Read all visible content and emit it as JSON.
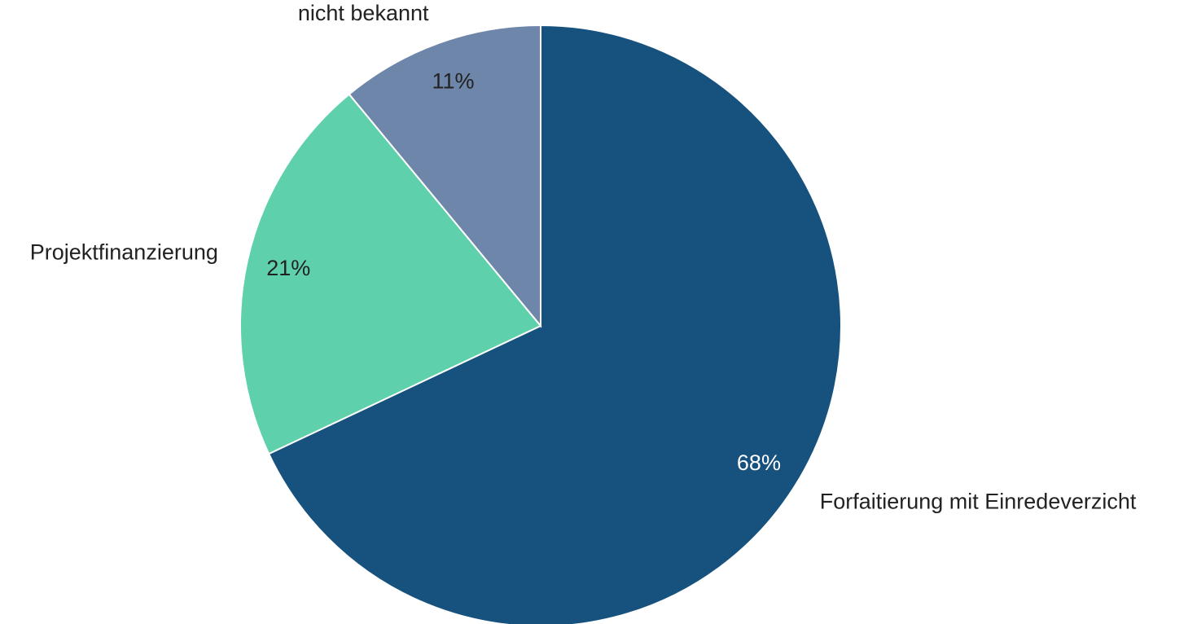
{
  "chart_data": {
    "type": "pie",
    "categories": [
      "Forfaitierung mit Einredeverzicht",
      "Projektfinanzierung",
      "nicht bekannt"
    ],
    "values": [
      68,
      21,
      11
    ],
    "value_labels": [
      "68%",
      "21%",
      "11%"
    ],
    "colors": [
      "#17517e",
      "#5fd0ac",
      "#6e86a9"
    ]
  }
}
